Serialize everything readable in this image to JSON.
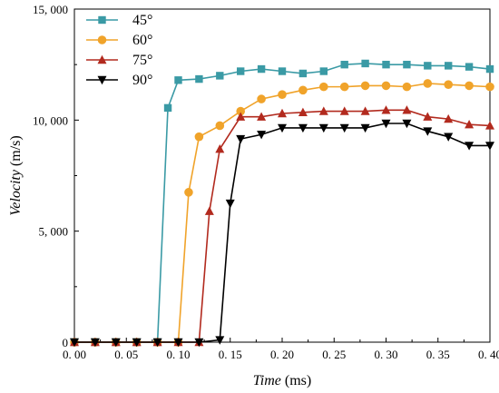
{
  "chart_data": {
    "type": "line",
    "xlabel": {
      "italic": "Time",
      "unit": " (ms)"
    },
    "ylabel": {
      "italic": "Velocity",
      "unit": " (m/s)"
    },
    "xlim": [
      0,
      0.4
    ],
    "ylim": [
      0,
      15000
    ],
    "x_ticks": [
      0,
      0.05,
      0.1,
      0.15,
      0.2,
      0.25,
      0.3,
      0.35,
      0.4
    ],
    "x_tick_labels": [
      "0. 00",
      "0. 05",
      "0. 10",
      "0. 15",
      "0. 20",
      "0. 25",
      "0. 30",
      "0. 35",
      "0. 40"
    ],
    "y_ticks": [
      0,
      5000,
      10000,
      15000
    ],
    "y_tick_labels": [
      "0",
      "5, 000",
      "10, 000",
      "15, 000"
    ],
    "grid": false,
    "legend_position": "top-left",
    "series": [
      {
        "name": "45°",
        "color": "#3a9aa5",
        "marker": "square",
        "x": [
          0,
          0.02,
          0.04,
          0.06,
          0.08,
          0.09,
          0.1,
          0.12,
          0.14,
          0.16,
          0.18,
          0.2,
          0.22,
          0.24,
          0.26,
          0.28,
          0.3,
          0.32,
          0.34,
          0.36,
          0.38,
          0.4
        ],
        "y": [
          0,
          0,
          0,
          0,
          0,
          10550,
          11800,
          11850,
          12000,
          12200,
          12300,
          12200,
          12100,
          12200,
          12500,
          12550,
          12500,
          12500,
          12450,
          12450,
          12400,
          12300
        ]
      },
      {
        "name": "60°",
        "color": "#f0a32a",
        "marker": "circle",
        "x": [
          0,
          0.02,
          0.04,
          0.06,
          0.08,
          0.1,
          0.11,
          0.12,
          0.14,
          0.16,
          0.18,
          0.2,
          0.22,
          0.24,
          0.26,
          0.28,
          0.3,
          0.32,
          0.34,
          0.36,
          0.38,
          0.4
        ],
        "y": [
          0,
          0,
          0,
          0,
          0,
          0,
          6750,
          9250,
          9750,
          10400,
          10950,
          11150,
          11350,
          11500,
          11500,
          11550,
          11550,
          11500,
          11650,
          11600,
          11550,
          11500
        ]
      },
      {
        "name": "75°",
        "color": "#b22a1e",
        "marker": "triangle-up",
        "x": [
          0,
          0.02,
          0.04,
          0.06,
          0.08,
          0.1,
          0.12,
          0.13,
          0.14,
          0.16,
          0.18,
          0.2,
          0.22,
          0.24,
          0.26,
          0.28,
          0.3,
          0.32,
          0.34,
          0.36,
          0.38,
          0.4
        ],
        "y": [
          0,
          0,
          0,
          0,
          0,
          0,
          0,
          5900,
          8700,
          10150,
          10150,
          10300,
          10350,
          10400,
          10400,
          10400,
          10450,
          10450,
          10150,
          10050,
          9800,
          9750
        ]
      },
      {
        "name": "90°",
        "color": "#000000",
        "marker": "triangle-down",
        "x": [
          0,
          0.02,
          0.04,
          0.06,
          0.08,
          0.1,
          0.12,
          0.14,
          0.15,
          0.16,
          0.18,
          0.2,
          0.22,
          0.24,
          0.26,
          0.28,
          0.3,
          0.32,
          0.34,
          0.36,
          0.38,
          0.4
        ],
        "y": [
          0,
          0,
          0,
          0,
          0,
          0,
          0,
          100,
          6250,
          9150,
          9350,
          9650,
          9650,
          9650,
          9650,
          9650,
          9850,
          9850,
          9500,
          9250,
          8850,
          8850
        ]
      }
    ]
  }
}
